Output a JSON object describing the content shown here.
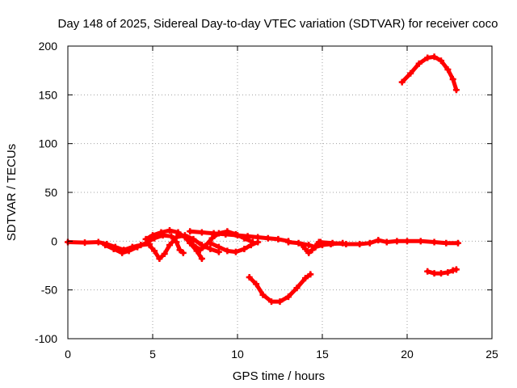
{
  "chart_data": {
    "type": "scatter",
    "title": "Day 148 of 2025, Sidereal Day-to-day VTEC variation (SDTVAR) for receiver coco",
    "xlabel": "GPS time / hours",
    "ylabel": "SDTVAR / TECUs",
    "xlim": [
      0,
      25
    ],
    "ylim": [
      -100,
      200
    ],
    "xticks": [
      0,
      5,
      10,
      15,
      20,
      25
    ],
    "yticks": [
      -100,
      -50,
      0,
      50,
      100,
      150,
      200
    ],
    "grid": true,
    "marker_color": "#ff0000",
    "series": [
      {
        "name": "trace-1",
        "points": [
          [
            0,
            -1
          ],
          [
            1,
            -1.5
          ],
          [
            1.8,
            -1
          ],
          [
            2.3,
            -3
          ],
          [
            2.8,
            -6
          ],
          [
            3.3,
            -9
          ],
          [
            3.8,
            -6
          ],
          [
            4.3,
            -4
          ],
          [
            4.8,
            -3
          ]
        ]
      },
      {
        "name": "trace-2",
        "points": [
          [
            2.2,
            -4
          ],
          [
            2.7,
            -8
          ],
          [
            3.2,
            -12
          ],
          [
            3.6,
            -10
          ],
          [
            4.1,
            -6
          ],
          [
            4.6,
            -2
          ],
          [
            5.1,
            3
          ],
          [
            5.6,
            6
          ],
          [
            6.1,
            5
          ],
          [
            6.4,
            -1
          ],
          [
            6.6,
            -9
          ],
          [
            6.8,
            -12
          ]
        ]
      },
      {
        "name": "trace-3",
        "points": [
          [
            4.6,
            2
          ],
          [
            5.0,
            6
          ],
          [
            5.5,
            9
          ],
          [
            6.0,
            11
          ],
          [
            6.5,
            9
          ],
          [
            6.9,
            4
          ],
          [
            7.2,
            -2
          ],
          [
            7.6,
            -10
          ],
          [
            7.9,
            -18
          ]
        ]
      },
      {
        "name": "trace-4",
        "points": [
          [
            4.8,
            -4
          ],
          [
            5.1,
            -10
          ],
          [
            5.4,
            -18
          ],
          [
            5.7,
            -13
          ],
          [
            6.0,
            -4
          ],
          [
            6.4,
            4
          ],
          [
            6.9,
            6
          ],
          [
            7.4,
            2
          ],
          [
            7.9,
            -4
          ],
          [
            8.4,
            -8
          ],
          [
            8.9,
            -11
          ]
        ]
      },
      {
        "name": "trace-5",
        "points": [
          [
            7.0,
            4
          ],
          [
            7.4,
            -4
          ],
          [
            7.8,
            -9
          ],
          [
            8.1,
            -5
          ],
          [
            8.5,
            3
          ],
          [
            8.9,
            8
          ],
          [
            9.4,
            10
          ],
          [
            9.9,
            7
          ],
          [
            10.4,
            3
          ],
          [
            10.9,
            -1
          ]
        ]
      },
      {
        "name": "trace-6",
        "points": [
          [
            7.2,
            10
          ],
          [
            7.9,
            9
          ],
          [
            8.6,
            8
          ],
          [
            9.3,
            7
          ],
          [
            10.0,
            6
          ],
          [
            10.6,
            5
          ],
          [
            11.2,
            4
          ],
          [
            11.8,
            3
          ],
          [
            12.4,
            2
          ],
          [
            13.0,
            0
          ]
        ]
      },
      {
        "name": "trace-7",
        "points": [
          [
            8.4,
            -2
          ],
          [
            8.9,
            -6
          ],
          [
            9.4,
            -10
          ],
          [
            9.9,
            -11
          ],
          [
            10.4,
            -8
          ],
          [
            10.8,
            -4
          ],
          [
            11.2,
            -1
          ]
        ]
      },
      {
        "name": "trace-8",
        "points": [
          [
            13.0,
            -1
          ],
          [
            13.6,
            -2
          ],
          [
            14.2,
            -4
          ],
          [
            14.6,
            -6
          ],
          [
            15.0,
            -4
          ],
          [
            15.5,
            -3
          ],
          [
            16.2,
            -2
          ]
        ]
      },
      {
        "name": "trace-9",
        "points": [
          [
            13.8,
            -4
          ],
          [
            14.0,
            -8
          ],
          [
            14.2,
            -12
          ],
          [
            14.4,
            -9
          ],
          [
            14.6,
            -5
          ],
          [
            14.9,
            -1
          ]
        ]
      },
      {
        "name": "trace-10",
        "points": [
          [
            14.8,
            -1
          ],
          [
            15.6,
            -2
          ],
          [
            16.4,
            -3
          ],
          [
            17.2,
            -3
          ],
          [
            17.8,
            -2
          ],
          [
            18.3,
            1
          ],
          [
            18.8,
            -1
          ],
          [
            19.4,
            0
          ],
          [
            20.0,
            0
          ],
          [
            20.8,
            0
          ],
          [
            21.6,
            -1
          ],
          [
            22.3,
            -2
          ],
          [
            23.0,
            -2
          ]
        ]
      },
      {
        "name": "trace-11",
        "points": [
          [
            10.7,
            -37
          ],
          [
            11.1,
            -44
          ],
          [
            11.5,
            -55
          ],
          [
            12.0,
            -62
          ],
          [
            12.5,
            -62
          ],
          [
            13.0,
            -57
          ],
          [
            13.5,
            -48
          ],
          [
            14.0,
            -38
          ],
          [
            14.3,
            -34
          ]
        ]
      },
      {
        "name": "trace-12",
        "points": [
          [
            19.7,
            163
          ],
          [
            20.2,
            172
          ],
          [
            20.7,
            182
          ],
          [
            21.2,
            188
          ],
          [
            21.6,
            189
          ],
          [
            22.0,
            185
          ],
          [
            22.4,
            176
          ],
          [
            22.7,
            166
          ],
          [
            22.9,
            155
          ]
        ]
      },
      {
        "name": "trace-13",
        "points": [
          [
            21.2,
            -31
          ],
          [
            21.6,
            -33
          ],
          [
            22.0,
            -33
          ],
          [
            22.4,
            -32
          ],
          [
            22.7,
            -30
          ],
          [
            22.9,
            -29
          ]
        ]
      }
    ]
  }
}
